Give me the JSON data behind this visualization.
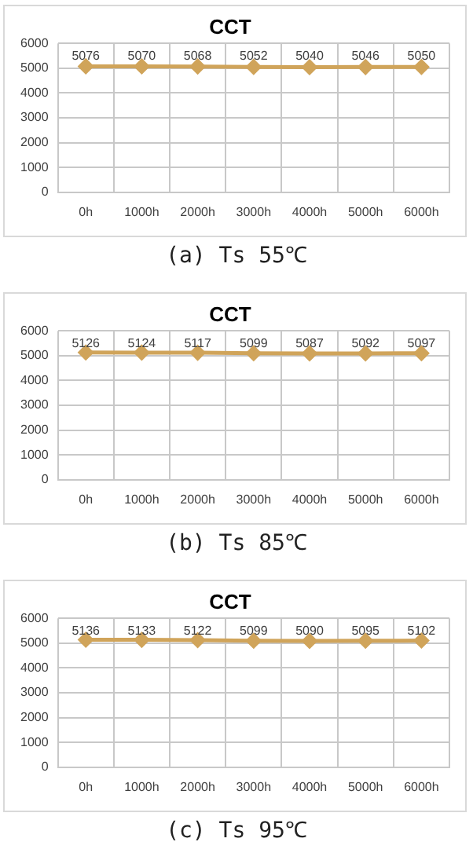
{
  "chart_data": [
    {
      "type": "line",
      "title": "CCT",
      "categories": [
        "0h",
        "1000h",
        "2000h",
        "3000h",
        "4000h",
        "5000h",
        "6000h"
      ],
      "values": [
        5076,
        5070,
        5068,
        5052,
        5040,
        5046,
        5050
      ],
      "color": "#d0a45a",
      "ylim": [
        0,
        6000
      ],
      "yticks": [
        0,
        1000,
        2000,
        3000,
        4000,
        5000,
        6000
      ],
      "grid": true,
      "marker": "diamond",
      "data_labels": true,
      "annotations": [
        "(a) Ts 55℃"
      ]
    },
    {
      "type": "line",
      "title": "CCT",
      "categories": [
        "0h",
        "1000h",
        "2000h",
        "3000h",
        "4000h",
        "5000h",
        "6000h"
      ],
      "values": [
        5126,
        5124,
        5117,
        5099,
        5087,
        5092,
        5097
      ],
      "color": "#d0a45a",
      "ylim": [
        0,
        6000
      ],
      "yticks": [
        0,
        1000,
        2000,
        3000,
        4000,
        5000,
        6000
      ],
      "grid": true,
      "marker": "diamond",
      "data_labels": true,
      "annotations": [
        "(b) Ts 85℃"
      ]
    },
    {
      "type": "line",
      "title": "CCT",
      "categories": [
        "0h",
        "1000h",
        "2000h",
        "3000h",
        "4000h",
        "5000h",
        "6000h"
      ],
      "values": [
        5136,
        5133,
        5122,
        5099,
        5090,
        5095,
        5102
      ],
      "color": "#d0a45a",
      "ylim": [
        0,
        6000
      ],
      "yticks": [
        0,
        1000,
        2000,
        3000,
        4000,
        5000,
        6000
      ],
      "grid": true,
      "marker": "diamond",
      "data_labels": true,
      "annotations": [
        "(c) Ts 95℃"
      ]
    }
  ]
}
